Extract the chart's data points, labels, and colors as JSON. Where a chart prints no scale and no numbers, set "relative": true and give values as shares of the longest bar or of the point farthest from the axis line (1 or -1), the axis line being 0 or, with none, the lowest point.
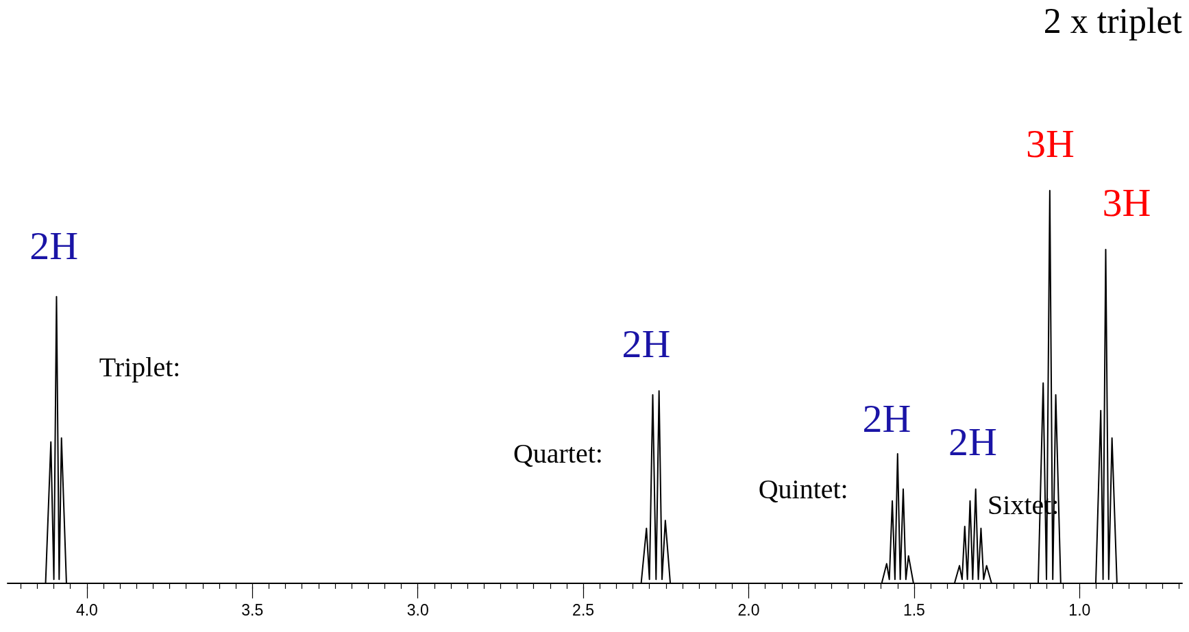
{
  "chart_data": {
    "type": "line",
    "relative": true,
    "marker": "none",
    "x": [
      4.24,
      4.125,
      4.109,
      4.1,
      4.092,
      4.084,
      4.077,
      4.062,
      2.325,
      2.309,
      2.3,
      2.29,
      2.28,
      2.271,
      2.262,
      2.252,
      2.237,
      1.598,
      1.583,
      1.575,
      1.566,
      1.558,
      1.55,
      1.542,
      1.533,
      1.525,
      1.517,
      1.502,
      1.378,
      1.363,
      1.355,
      1.347,
      1.339,
      1.331,
      1.323,
      1.314,
      1.306,
      1.298,
      1.29,
      1.281,
      1.266,
      1.125,
      1.11,
      1.1,
      1.09,
      1.081,
      1.072,
      1.057,
      0.951,
      0.936,
      0.929,
      0.921,
      0.912,
      0.902,
      0.887,
      0.69
    ],
    "series": [
      {
        "color": "#000000",
        "values": [
          0,
          0,
          0.36,
          0.01,
          0.73,
          0.01,
          0.37,
          0,
          0,
          0.14,
          0.01,
          0.48,
          0.01,
          0.49,
          0.01,
          0.16,
          0,
          0,
          0.05,
          0.01,
          0.21,
          0.01,
          0.33,
          0.01,
          0.24,
          0.01,
          0.07,
          0,
          0,
          0.045,
          0.01,
          0.145,
          0.01,
          0.21,
          0.01,
          0.24,
          0.01,
          0.14,
          0.01,
          0.045,
          0,
          0,
          0.51,
          0.01,
          1.0,
          0.01,
          0.48,
          0,
          0,
          0.44,
          0.01,
          0.85,
          0.01,
          0.37,
          0,
          0
        ]
      }
    ],
    "xlim": [
      4.24,
      0.69
    ],
    "xticks": [
      {
        "value": 4.2,
        "label": null
      },
      {
        "value": 4.15,
        "label": null
      },
      {
        "value": 4.1,
        "label": null
      },
      {
        "value": 4.05,
        "label": null
      },
      {
        "value": 4,
        "label": "4.0"
      },
      {
        "value": 3.95,
        "label": null
      },
      {
        "value": 3.9,
        "label": null
      },
      {
        "value": 3.85,
        "label": null
      },
      {
        "value": 3.8,
        "label": null
      },
      {
        "value": 3.75,
        "label": null
      },
      {
        "value": 3.7,
        "label": null
      },
      {
        "value": 3.65,
        "label": null
      },
      {
        "value": 3.6,
        "label": null
      },
      {
        "value": 3.55,
        "label": null
      },
      {
        "value": 3.5,
        "label": "3.5"
      },
      {
        "value": 3.45,
        "label": null
      },
      {
        "value": 3.4,
        "label": null
      },
      {
        "value": 3.35,
        "label": null
      },
      {
        "value": 3.3,
        "label": null
      },
      {
        "value": 3.25,
        "label": null
      },
      {
        "value": 3.2,
        "label": null
      },
      {
        "value": 3.15,
        "label": null
      },
      {
        "value": 3.1,
        "label": null
      },
      {
        "value": 3.05,
        "label": null
      },
      {
        "value": 3,
        "label": "3.0"
      },
      {
        "value": 2.95,
        "label": null
      },
      {
        "value": 2.9,
        "label": null
      },
      {
        "value": 2.85,
        "label": null
      },
      {
        "value": 2.8,
        "label": null
      },
      {
        "value": 2.75,
        "label": null
      },
      {
        "value": 2.7,
        "label": null
      },
      {
        "value": 2.65,
        "label": null
      },
      {
        "value": 2.6,
        "label": null
      },
      {
        "value": 2.55,
        "label": null
      },
      {
        "value": 2.5,
        "label": "2.5"
      },
      {
        "value": 2.45,
        "label": null
      },
      {
        "value": 2.4,
        "label": null
      },
      {
        "value": 2.35,
        "label": null
      },
      {
        "value": 2.3,
        "label": null
      },
      {
        "value": 2.25,
        "label": null
      },
      {
        "value": 2.2,
        "label": null
      },
      {
        "value": 2.15,
        "label": null
      },
      {
        "value": 2.1,
        "label": null
      },
      {
        "value": 2.05,
        "label": null
      },
      {
        "value": 2,
        "label": "2.0"
      },
      {
        "value": 1.95,
        "label": null
      },
      {
        "value": 1.9,
        "label": null
      },
      {
        "value": 1.85,
        "label": null
      },
      {
        "value": 1.8,
        "label": null
      },
      {
        "value": 1.75,
        "label": null
      },
      {
        "value": 1.7,
        "label": null
      },
      {
        "value": 1.65,
        "label": null
      },
      {
        "value": 1.6,
        "label": null
      },
      {
        "value": 1.55,
        "label": null
      },
      {
        "value": 1.5,
        "label": "1.5"
      },
      {
        "value": 1.45,
        "label": null
      },
      {
        "value": 1.4,
        "label": null
      },
      {
        "value": 1.35,
        "label": null
      },
      {
        "value": 1.3,
        "label": null
      },
      {
        "value": 1.25,
        "label": null
      },
      {
        "value": 1.2,
        "label": null
      },
      {
        "value": 1.15,
        "label": null
      },
      {
        "value": 1.1,
        "label": null
      },
      {
        "value": 1.05,
        "label": null
      },
      {
        "value": 1,
        "label": "1.0"
      },
      {
        "value": 0.95,
        "label": null
      },
      {
        "value": 0.9,
        "label": null
      },
      {
        "value": 0.85,
        "label": null
      },
      {
        "value": 0.8,
        "label": null
      },
      {
        "value": 0.75,
        "label": null
      },
      {
        "value": 0.7,
        "label": null
      }
    ],
    "annotations": [
      "2H",
      "Triplet:",
      "2H",
      "Quartet:",
      "2H",
      "Quintet:",
      "2H",
      "Sixtet:",
      "3H",
      "3H",
      "2 x triplet"
    ]
  }
}
